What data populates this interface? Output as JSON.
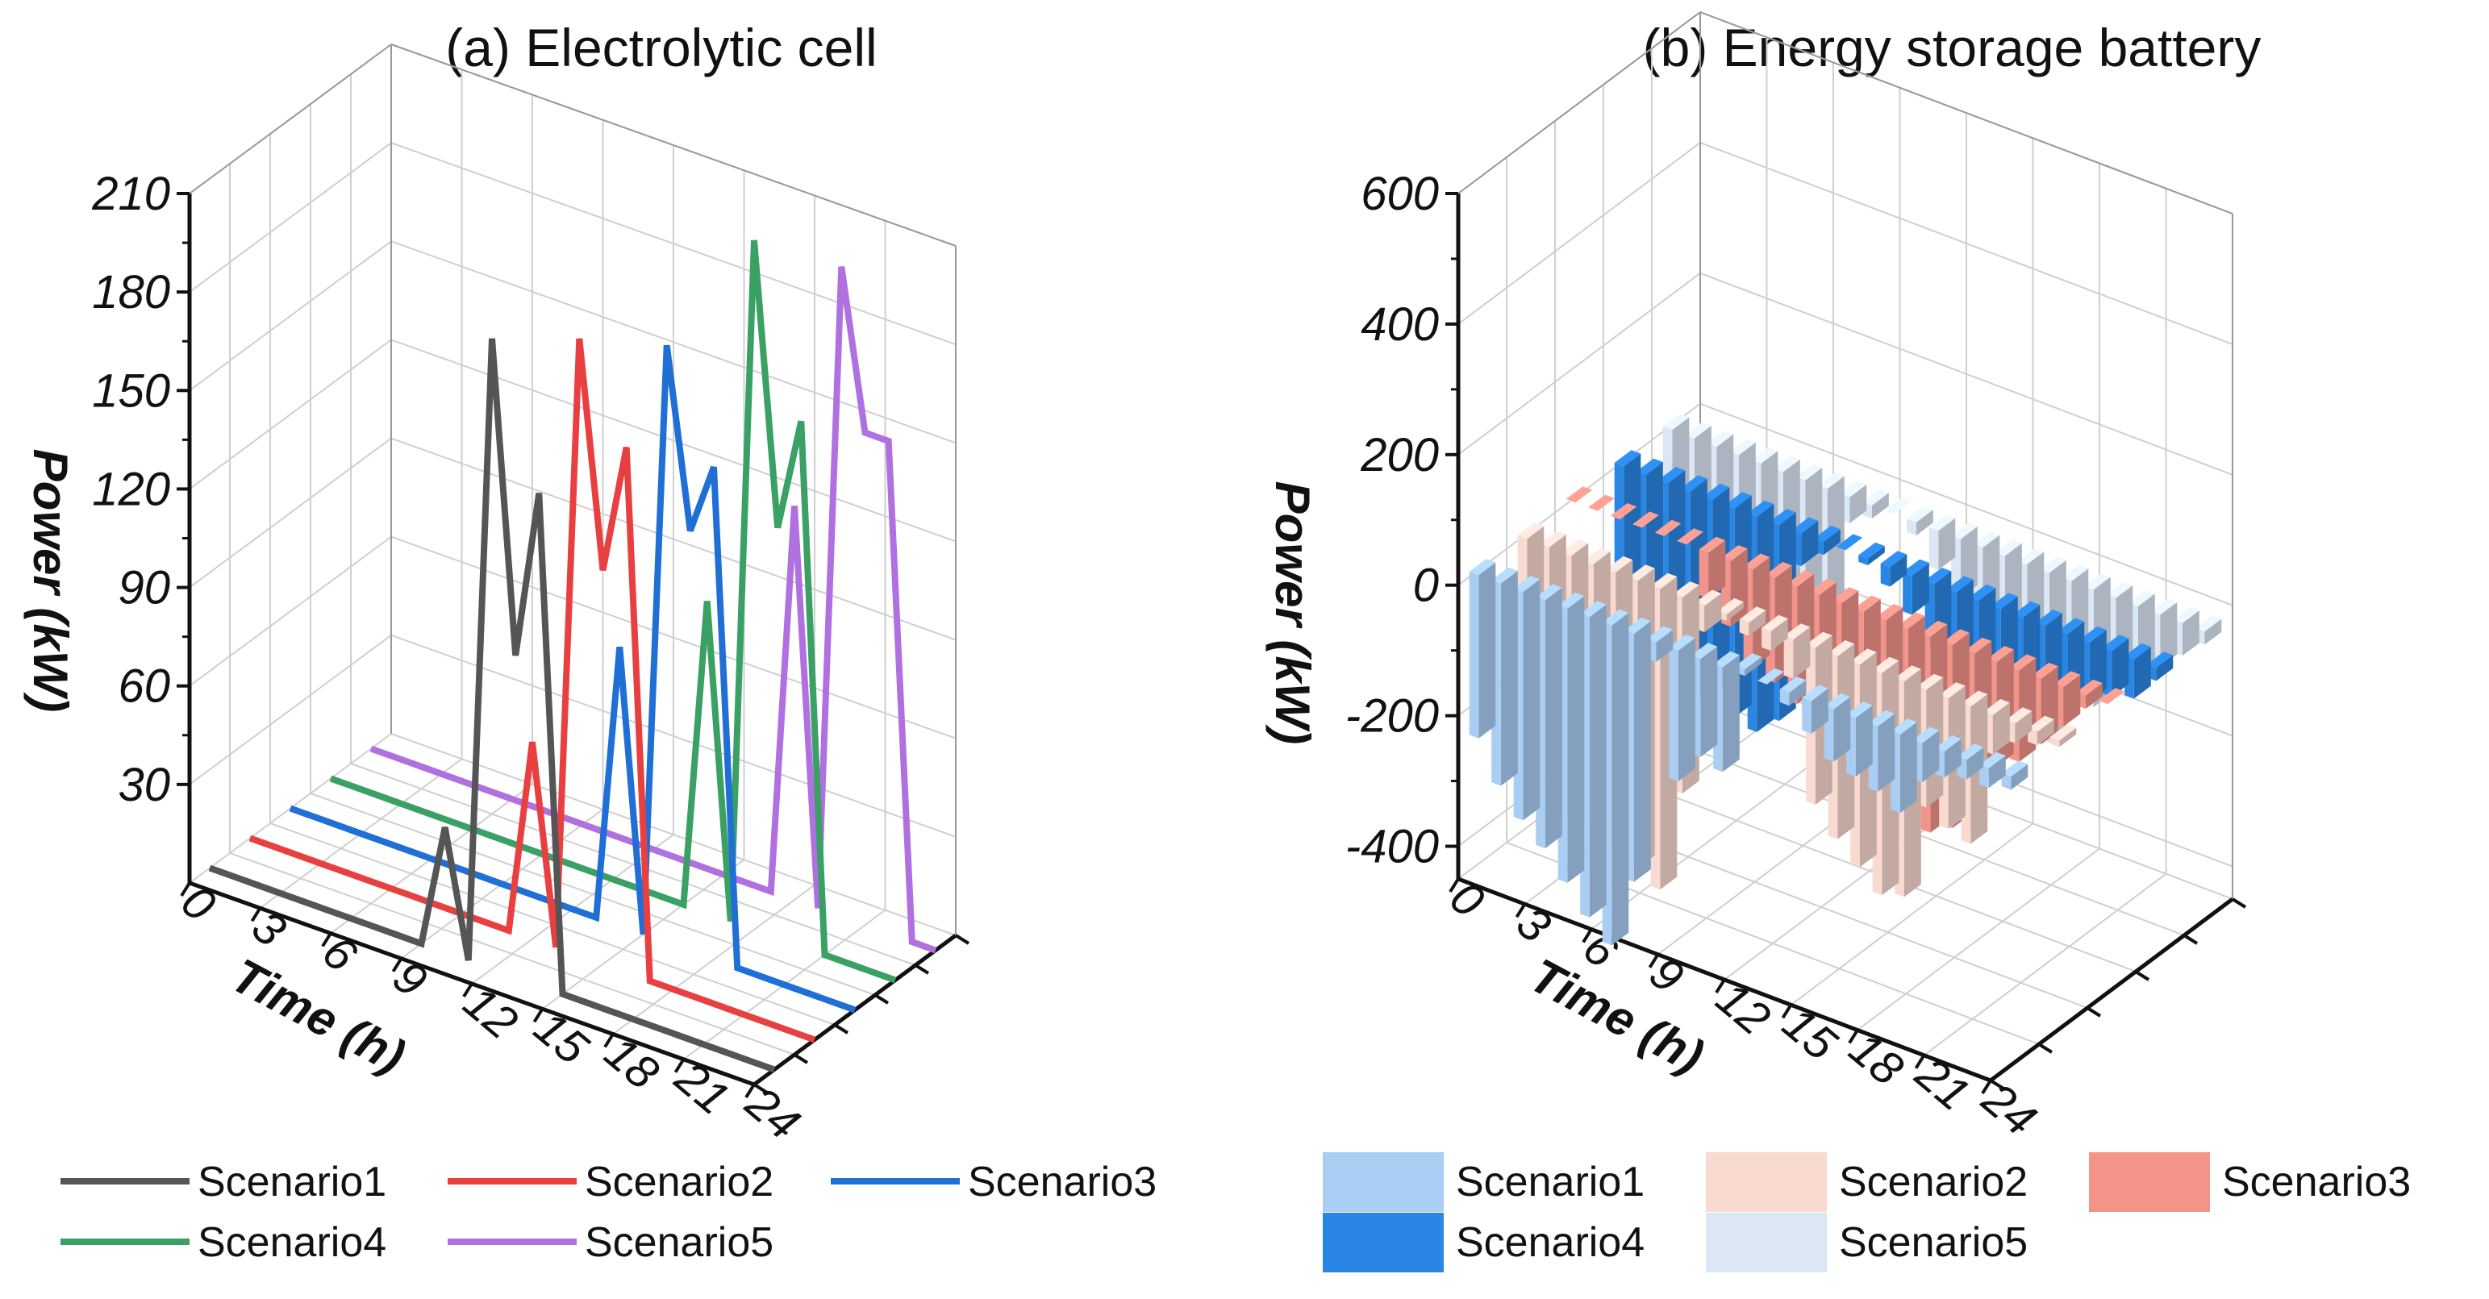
{
  "chart_data": [
    {
      "type": "line",
      "title": "(a) Electrolytic cell",
      "xlabel": "Time (h)",
      "ylabel": "Power (kW)",
      "x_ticks": [
        "0",
        "3",
        "6",
        "9",
        "12",
        "15",
        "18",
        "21",
        "24"
      ],
      "y_ticks": [
        "30",
        "60",
        "90",
        "120",
        "150",
        "180",
        "210"
      ],
      "ylim": [
        0,
        210
      ],
      "xlim": [
        0,
        24
      ],
      "x": [
        0,
        1,
        2,
        3,
        4,
        5,
        6,
        7,
        8,
        9,
        10,
        11,
        12,
        13,
        14,
        15,
        16,
        17,
        18,
        19,
        20,
        21,
        22,
        23,
        24
      ],
      "series": [
        {
          "name": "Scenario1",
          "color": "#555555",
          "values": [
            0,
            0,
            0,
            0,
            0,
            0,
            0,
            0,
            0,
            0,
            38,
            0,
            192,
            98,
            150,
            0,
            0,
            0,
            0,
            0,
            0,
            0,
            0,
            0,
            0
          ]
        },
        {
          "name": "Scenario2",
          "color": "#e84040",
          "values": [
            0,
            0,
            0,
            0,
            0,
            0,
            0,
            0,
            0,
            0,
            0,
            0,
            60,
            0,
            188,
            120,
            160,
            0,
            0,
            0,
            0,
            0,
            0,
            0,
            0
          ]
        },
        {
          "name": "Scenario3",
          "color": "#1f6fd6",
          "values": [
            0,
            0,
            0,
            0,
            0,
            0,
            0,
            0,
            0,
            0,
            0,
            0,
            0,
            0,
            85,
            0,
            182,
            128,
            150,
            0,
            0,
            0,
            0,
            0,
            0
          ]
        },
        {
          "name": "Scenario4",
          "color": "#3aa064",
          "values": [
            0,
            0,
            0,
            0,
            0,
            0,
            0,
            0,
            0,
            0,
            0,
            0,
            0,
            0,
            0,
            0,
            95,
            0,
            210,
            125,
            160,
            0,
            0,
            0,
            0
          ]
        },
        {
          "name": "Scenario5",
          "color": "#b070e0",
          "values": [
            0,
            0,
            0,
            0,
            0,
            0,
            0,
            0,
            0,
            0,
            0,
            0,
            0,
            0,
            0,
            0,
            0,
            0,
            120,
            0,
            198,
            150,
            150,
            0,
            0
          ]
        }
      ],
      "legend": [
        "Scenario1",
        "Scenario2",
        "Scenario3",
        "Scenario4",
        "Scenario5"
      ]
    },
    {
      "type": "bar",
      "title": "(b) Energy storage battery",
      "xlabel": "Time (h)",
      "ylabel": "Power (kW)",
      "x_ticks": [
        "0",
        "3",
        "6",
        "9",
        "12",
        "15",
        "18",
        "21",
        "24"
      ],
      "y_ticks": [
        "-400",
        "-200",
        "0",
        "200",
        "400",
        "600"
      ],
      "ylim": [
        -450,
        600
      ],
      "xlim": [
        0,
        24
      ],
      "x": [
        0,
        1,
        2,
        3,
        4,
        5,
        6,
        7,
        8,
        9,
        10,
        11,
        12,
        13,
        14,
        15,
        16,
        17,
        18,
        19,
        20,
        21,
        22,
        23,
        24
      ],
      "series": [
        {
          "name": "Scenario1",
          "color": "#a9cdf3",
          "values": [
            -250,
            -310,
            -350,
            -380,
            -420,
            -460,
            -490,
            -380,
            -30,
            -200,
            -150,
            -160,
            10,
            0,
            -20,
            -50,
            -80,
            -90,
            -100,
            -120,
            -60,
            -40,
            -30,
            -30,
            -20
          ]
        },
        {
          "name": "Scenario2",
          "color": "#f9dad0",
          "values": [
            -300,
            -340,
            -380,
            -400,
            -420,
            -440,
            -460,
            -300,
            -40,
            -10,
            -20,
            -30,
            -60,
            -240,
            -280,
            -310,
            -340,
            -330,
            -180,
            -200,
            -210,
            -60,
            -30,
            -20,
            -10
          ]
        },
        {
          "name": "Scenario3",
          "color": "#f2948a",
          "values": [
            0,
            0,
            0,
            0,
            0,
            0,
            -70,
            -100,
            -150,
            -160,
            -180,
            -120,
            -150,
            -220,
            -250,
            -280,
            -300,
            -280,
            -200,
            -160,
            -140,
            -100,
            -60,
            -20,
            0
          ]
        },
        {
          "name": "Scenario4",
          "color": "#2a86e4",
          "values": [
            -210,
            -250,
            -270,
            -280,
            -300,
            -320,
            -330,
            -300,
            -50,
            -20,
            0,
            -10,
            -30,
            -60,
            -100,
            -140,
            -220,
            -230,
            -180,
            -160,
            -120,
            -90,
            -70,
            -60,
            -20
          ]
        },
        {
          "name": "Scenario5",
          "color": "#dbe7f5",
          "values": [
            -220,
            -260,
            -280,
            -300,
            -310,
            -320,
            -300,
            -280,
            -40,
            -20,
            0,
            -20,
            -60,
            -90,
            -120,
            -160,
            -250,
            -260,
            -200,
            -180,
            -140,
            -100,
            -80,
            -50,
            -20
          ]
        }
      ],
      "legend": [
        "Scenario1",
        "Scenario2",
        "Scenario3",
        "Scenario4",
        "Scenario5"
      ]
    }
  ]
}
